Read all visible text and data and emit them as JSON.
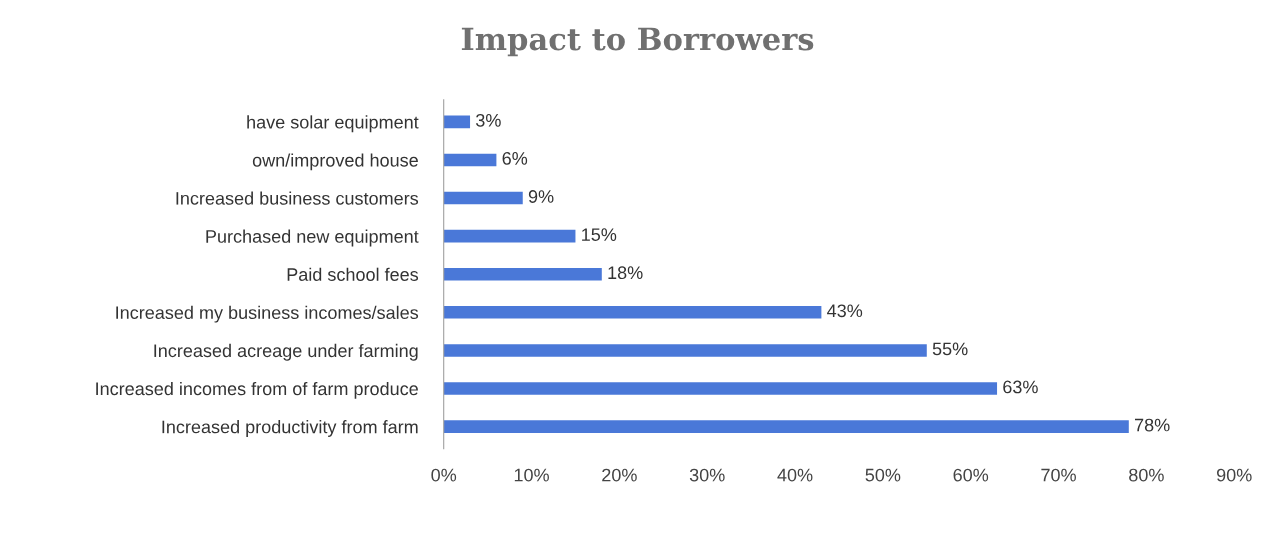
{
  "chart_data": {
    "type": "bar",
    "orientation": "horizontal",
    "title": "Impact to Borrowers",
    "categories": [
      "have solar equipment",
      "own/improved house",
      "Increased business customers",
      "Purchased new equipment",
      "Paid school fees",
      "Increased my business incomes/sales",
      "Increased acreage under farming",
      "Increased incomes from of farm produce",
      "Increased productivity from farm"
    ],
    "values": [
      3,
      6,
      9,
      15,
      18,
      43,
      55,
      63,
      78
    ],
    "value_labels": [
      "3%",
      "6%",
      "9%",
      "15%",
      "18%",
      "43%",
      "55%",
      "63%",
      "78%"
    ],
    "color": "#4a78d8",
    "xlim": [
      0,
      90
    ],
    "xticks": [
      {
        "value": 0,
        "label": "0%"
      },
      {
        "value": 10,
        "label": "10%"
      },
      {
        "value": 20,
        "label": "20%"
      },
      {
        "value": 30,
        "label": "30%"
      },
      {
        "value": 40,
        "label": "40%"
      },
      {
        "value": 50,
        "label": "50%"
      },
      {
        "value": 60,
        "label": "60%"
      },
      {
        "value": 70,
        "label": "70%"
      },
      {
        "value": 80,
        "label": "80%"
      },
      {
        "value": 90,
        "label": "90%"
      }
    ],
    "grid": false,
    "legend": false
  }
}
